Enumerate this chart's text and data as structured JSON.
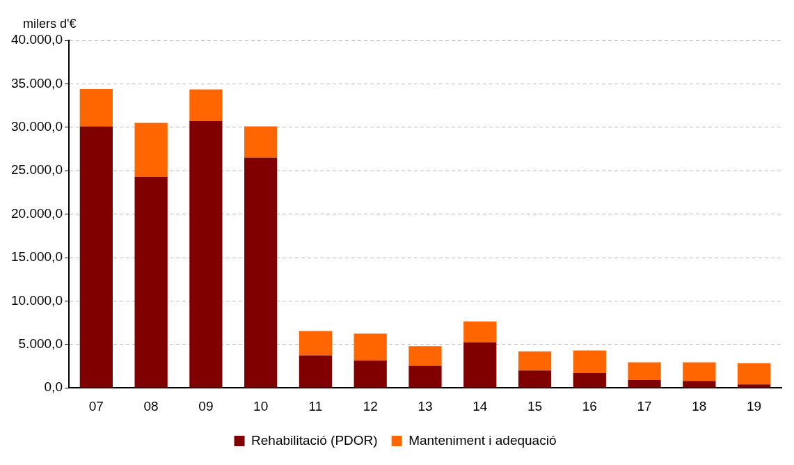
{
  "chart_data": {
    "type": "bar",
    "ylabel": "milers d'€",
    "categories": [
      "07",
      "08",
      "09",
      "10",
      "11",
      "12",
      "13",
      "14",
      "15",
      "16",
      "17",
      "18",
      "19"
    ],
    "stacked": true,
    "series": [
      {
        "name": "Rehabilitació (PDOR)",
        "color": "#800000",
        "values": [
          30100,
          24300,
          30700,
          26500,
          3750,
          3150,
          2550,
          5250,
          2000,
          1700,
          900,
          800,
          400
        ]
      },
      {
        "name": "Manteniment i adequació",
        "color": "#ff6600",
        "values": [
          4300,
          6200,
          3650,
          3600,
          2800,
          3100,
          2250,
          2400,
          2200,
          2600,
          2050,
          2150,
          2450
        ]
      }
    ],
    "ylim": [
      0,
      40000
    ],
    "yticks": [
      {
        "value": 0,
        "label": "0,0"
      },
      {
        "value": 5000,
        "label": "5.000,0"
      },
      {
        "value": 10000,
        "label": "10.000,0"
      },
      {
        "value": 15000,
        "label": "15.000,0"
      },
      {
        "value": 20000,
        "label": "20.000,0"
      },
      {
        "value": 25000,
        "label": "25.000,0"
      },
      {
        "value": 30000,
        "label": "30.000,0"
      },
      {
        "value": 35000,
        "label": "35.000,0"
      },
      {
        "value": 40000,
        "label": "40.000,0"
      }
    ],
    "grid": "y",
    "legend": "bottom"
  }
}
